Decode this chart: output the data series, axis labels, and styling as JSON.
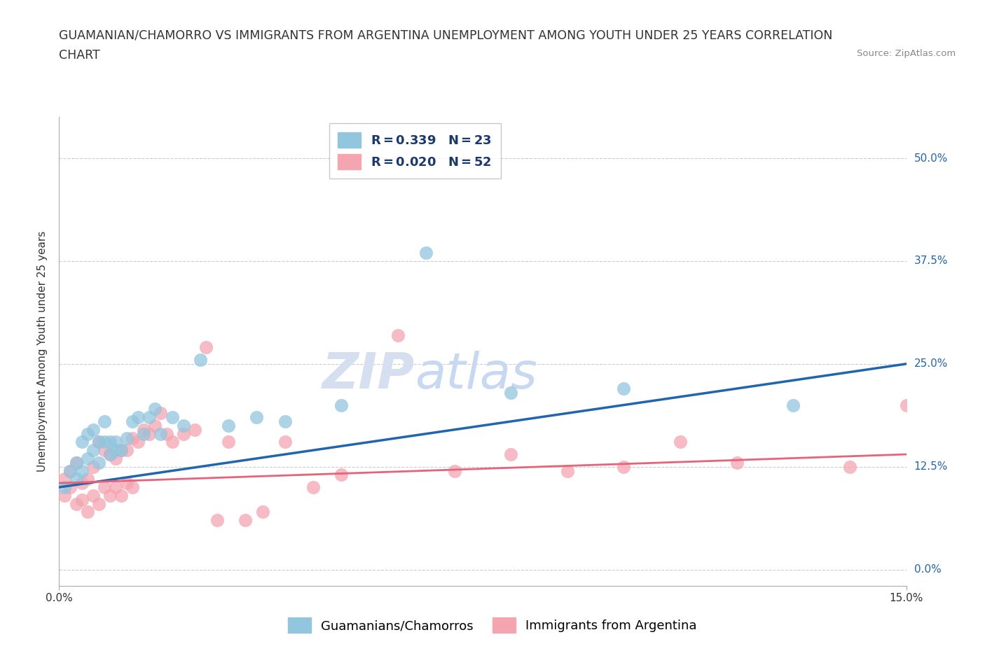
{
  "title_line1": "GUAMANIAN/CHAMORRO VS IMMIGRANTS FROM ARGENTINA UNEMPLOYMENT AMONG YOUTH UNDER 25 YEARS CORRELATION",
  "title_line2": "CHART",
  "source_text": "Source: ZipAtlas.com",
  "ylabel": "Unemployment Among Youth under 25 years",
  "xlim": [
    0.0,
    0.15
  ],
  "ylim": [
    -0.02,
    0.55
  ],
  "yticks": [
    0.0,
    0.125,
    0.25,
    0.375,
    0.5
  ],
  "ytick_labels": [
    "0.0%",
    "12.5%",
    "25.0%",
    "37.5%",
    "50.0%"
  ],
  "xtick_labels": [
    "0.0%",
    "15.0%"
  ],
  "xtick_positions": [
    0.0,
    0.15
  ],
  "watermark_line1": "ZIP",
  "watermark_line2": "atlas",
  "guamanian_color": "#92c5de",
  "argentina_color": "#f4a5b0",
  "trend_guamanian_color": "#2166ac",
  "trend_argentina_color": "#e8637a",
  "background_color": "#ffffff",
  "grid_color": "#cccccc",
  "title_fontsize": 12.5,
  "axis_label_fontsize": 11,
  "tick_fontsize": 11,
  "legend_fontsize": 13,
  "watermark_color": "#d5dff0",
  "legend_R_N_color": "#1a3a6b",
  "ytick_color": "#2166ac",
  "guamanian_x": [
    0.001,
    0.002,
    0.003,
    0.003,
    0.004,
    0.004,
    0.005,
    0.005,
    0.006,
    0.006,
    0.007,
    0.007,
    0.008,
    0.008,
    0.009,
    0.009,
    0.01,
    0.01,
    0.011,
    0.012,
    0.013,
    0.014,
    0.015,
    0.016,
    0.017,
    0.018,
    0.02,
    0.022,
    0.025,
    0.03,
    0.035,
    0.04,
    0.05,
    0.065,
    0.08,
    0.1,
    0.13
  ],
  "guamanian_y": [
    0.1,
    0.12,
    0.11,
    0.13,
    0.12,
    0.155,
    0.135,
    0.165,
    0.145,
    0.17,
    0.13,
    0.155,
    0.155,
    0.18,
    0.14,
    0.155,
    0.145,
    0.155,
    0.145,
    0.16,
    0.18,
    0.185,
    0.165,
    0.185,
    0.195,
    0.165,
    0.185,
    0.175,
    0.255,
    0.175,
    0.185,
    0.18,
    0.2,
    0.385,
    0.215,
    0.22,
    0.2
  ],
  "argentina_x": [
    0.001,
    0.001,
    0.002,
    0.002,
    0.003,
    0.003,
    0.004,
    0.004,
    0.005,
    0.005,
    0.006,
    0.006,
    0.007,
    0.007,
    0.008,
    0.008,
    0.009,
    0.009,
    0.01,
    0.01,
    0.011,
    0.011,
    0.012,
    0.012,
    0.013,
    0.013,
    0.014,
    0.015,
    0.016,
    0.017,
    0.018,
    0.019,
    0.02,
    0.022,
    0.024,
    0.026,
    0.028,
    0.03,
    0.033,
    0.036,
    0.04,
    0.045,
    0.05,
    0.06,
    0.07,
    0.08,
    0.09,
    0.1,
    0.11,
    0.12,
    0.14,
    0.15
  ],
  "argentina_y": [
    0.09,
    0.11,
    0.1,
    0.12,
    0.08,
    0.13,
    0.085,
    0.105,
    0.07,
    0.11,
    0.09,
    0.125,
    0.08,
    0.155,
    0.1,
    0.145,
    0.09,
    0.14,
    0.1,
    0.135,
    0.09,
    0.145,
    0.105,
    0.145,
    0.1,
    0.16,
    0.155,
    0.17,
    0.165,
    0.175,
    0.19,
    0.165,
    0.155,
    0.165,
    0.17,
    0.27,
    0.06,
    0.155,
    0.06,
    0.07,
    0.155,
    0.1,
    0.115,
    0.285,
    0.12,
    0.14,
    0.12,
    0.125,
    0.155,
    0.13,
    0.125,
    0.2
  ],
  "guamanian_trend_x0": 0.0,
  "guamanian_trend_y0": 0.1,
  "guamanian_trend_x1": 0.15,
  "guamanian_trend_y1": 0.25,
  "argentina_trend_x0": 0.0,
  "argentina_trend_y0": 0.105,
  "argentina_trend_x1": 0.15,
  "argentina_trend_y1": 0.14
}
